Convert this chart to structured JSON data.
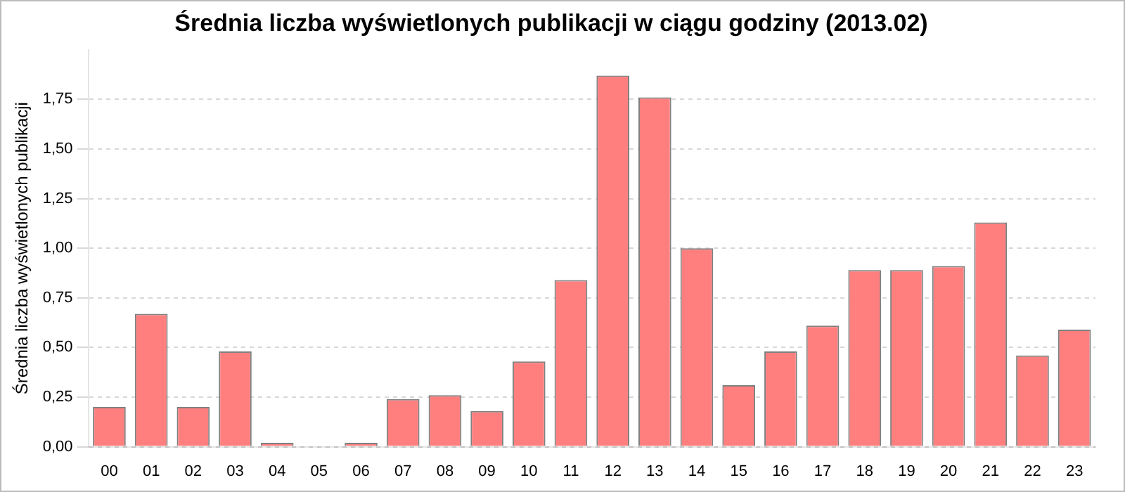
{
  "chart_data": {
    "type": "bar",
    "title": "Średnia liczba wyświetlonych publikacji w ciągu godziny (2013.02)",
    "ylabel": "Średnia liczba wyświetlonych publikacji",
    "categories": [
      "00",
      "01",
      "02",
      "03",
      "04",
      "05",
      "06",
      "07",
      "08",
      "09",
      "10",
      "11",
      "12",
      "13",
      "14",
      "15",
      "16",
      "17",
      "18",
      "19",
      "20",
      "21",
      "22",
      "23"
    ],
    "values": [
      0.2,
      0.67,
      0.2,
      0.48,
      0.02,
      0,
      0.02,
      0.24,
      0.26,
      0.18,
      0.43,
      0.84,
      1.87,
      1.76,
      1.0,
      0.31,
      0.48,
      0.61,
      0.89,
      0.89,
      0.91,
      1.13,
      0.46,
      0.59
    ],
    "color": "#ff7f7f",
    "ylim": [
      0,
      2
    ],
    "yticks": [
      {
        "value": 0,
        "label": "0,00"
      },
      {
        "value": 0.25,
        "label": "0,25"
      },
      {
        "value": 0.5,
        "label": "0,50"
      },
      {
        "value": 0.75,
        "label": "0,75"
      },
      {
        "value": 1,
        "label": "1,00"
      },
      {
        "value": 1.25,
        "label": "1,25"
      },
      {
        "value": 1.5,
        "label": "1,50"
      },
      {
        "value": 1.75,
        "label": "1,75"
      }
    ],
    "grid": "y",
    "legend": false
  }
}
